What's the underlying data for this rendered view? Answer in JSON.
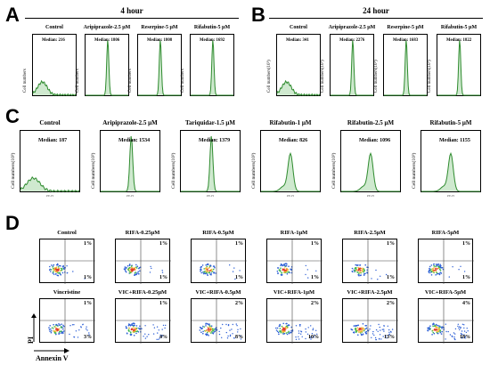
{
  "panels": {
    "A": {
      "letter": "A",
      "header": "4 hour"
    },
    "B": {
      "letter": "B",
      "header": "24 hour"
    },
    "C": {
      "letter": "C"
    },
    "D": {
      "letter": "D"
    }
  },
  "chart_data": [
    {
      "type": "area",
      "panel": "A",
      "title": "4 hour",
      "ylabel": "Cell numbers",
      "plots": [
        {
          "title": "Control",
          "median_label": "Median: 216"
        },
        {
          "title": "Aripiprazole-2.5 μM",
          "median_label": "Median: 1806"
        },
        {
          "title": "Reserpine-5 μM",
          "median_label": "Median: 1808"
        },
        {
          "title": "Rifabutin-5 μM",
          "median_label": "Median: 1692"
        }
      ]
    },
    {
      "type": "area",
      "panel": "B",
      "title": "24 hour",
      "ylabel": "Cell numbers(10³)",
      "plots": [
        {
          "title": "Control",
          "median_label": "Median: 341"
        },
        {
          "title": "Aripiprazole-2.5 μM",
          "median_label": "Median: 2276"
        },
        {
          "title": "Reserpine-5 μM",
          "median_label": "Median: 1683"
        },
        {
          "title": "Rifabutin-5 μM",
          "median_label": "Median: 1822"
        }
      ]
    },
    {
      "type": "area",
      "panel": "C",
      "ylabel": "Cell numbers(10³)",
      "xlabel": "PE-H",
      "plots": [
        {
          "title": "Control",
          "median_label": "Median: 187"
        },
        {
          "title": "Aripiprazole-2.5 μM",
          "median_label": "Median: 1534"
        },
        {
          "title": "Tariquidar-1.5 μM",
          "median_label": "Median: 1379"
        },
        {
          "title": "Rifabutin-1 μM",
          "median_label": "Median: 826"
        },
        {
          "title": "Rifabutin-2.5 μM",
          "median_label": "Median: 1096"
        },
        {
          "title": "Rifabutin-5 μM",
          "median_label": "Median: 1155"
        }
      ]
    },
    {
      "type": "scatter",
      "panel": "D",
      "xlabel": "Annexin V",
      "ylabel": "PI",
      "rows": [
        [
          {
            "title": "Control",
            "upper_right": "1%",
            "lower_right": "1%"
          },
          {
            "title": "RIFA-0.25μM",
            "upper_right": "1%",
            "lower_right": "1%"
          },
          {
            "title": "RIFA-0.5μM",
            "upper_right": "1%",
            "lower_right": "1%"
          },
          {
            "title": "RIFA-1μM",
            "upper_right": "1%",
            "lower_right": "1%"
          },
          {
            "title": "RIFA-2.5μM",
            "upper_right": "1%",
            "lower_right": "1%"
          },
          {
            "title": "RIFA-5μM",
            "upper_right": "1%",
            "lower_right": "1%"
          }
        ],
        [
          {
            "title": "Vincristine",
            "upper_right": "1%",
            "lower_right": "3%"
          },
          {
            "title": "VIC+RIFA-0.25μM",
            "upper_right": "1%",
            "lower_right": "4%"
          },
          {
            "title": "VIC+RIFA-0.5μM",
            "upper_right": "2%",
            "lower_right": "8%"
          },
          {
            "title": "VIC+RIFA-1μM",
            "upper_right": "2%",
            "lower_right": "10%"
          },
          {
            "title": "VIC+RIFA-2.5μM",
            "upper_right": "2%",
            "lower_right": "13%"
          },
          {
            "title": "VIC+RIFA-5μM",
            "upper_right": "4%",
            "lower_right": "18%"
          }
        ]
      ]
    }
  ]
}
